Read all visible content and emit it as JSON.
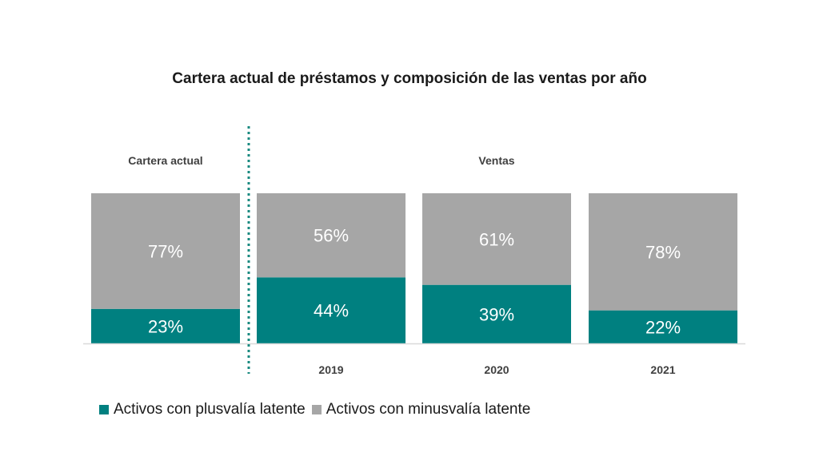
{
  "title": "Cartera actual de préstamos y composición de las ventas por año",
  "group_labels": {
    "left": "Cartera actual",
    "right": "Ventas"
  },
  "colors": {
    "plusvalia": "#008080",
    "minusvalia": "#a6a6a6",
    "divider": "#1a8a80",
    "axis": "#d9d9d9"
  },
  "legend": [
    {
      "label": "Activos con plusvalía latente",
      "color": "#008080"
    },
    {
      "label": "Activos con minusvalía latente",
      "color": "#a6a6a6"
    }
  ],
  "chart_data": {
    "type": "bar",
    "stacked": true,
    "categories": [
      "",
      "2019",
      "2020",
      "2021"
    ],
    "series": [
      {
        "name": "Activos con plusvalía latente",
        "values": [
          23,
          44,
          39,
          22
        ],
        "labels": [
          "23%",
          "44%",
          "39%",
          "22%"
        ]
      },
      {
        "name": "Activos con minusvalía latente",
        "values": [
          77,
          56,
          61,
          78
        ],
        "labels": [
          "77%",
          "56%",
          "61%",
          "78%"
        ]
      }
    ],
    "ylim": [
      0,
      100
    ],
    "title": "Cartera actual de préstamos y composición de las ventas por año",
    "legend_position": "bottom-left",
    "grid": false
  }
}
